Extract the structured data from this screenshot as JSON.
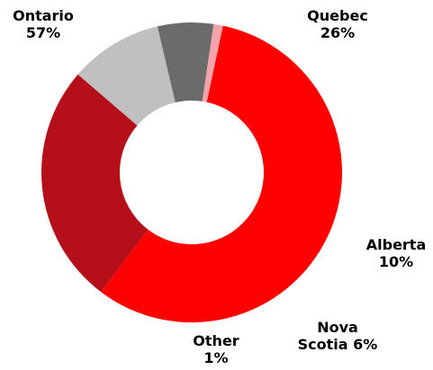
{
  "chart_data": {
    "type": "donut",
    "categories": [
      "Ontario",
      "Quebec",
      "Alberta",
      "Nova Scotia",
      "Other"
    ],
    "values": [
      57,
      26,
      10,
      6,
      1
    ],
    "value_labels": [
      "57%",
      "26%",
      "10%",
      "6%",
      "1%"
    ],
    "colors": [
      "#ff0000",
      "#b51019",
      "#c0c0c0",
      "#6b6b6b",
      "#f4a3ab"
    ]
  }
}
